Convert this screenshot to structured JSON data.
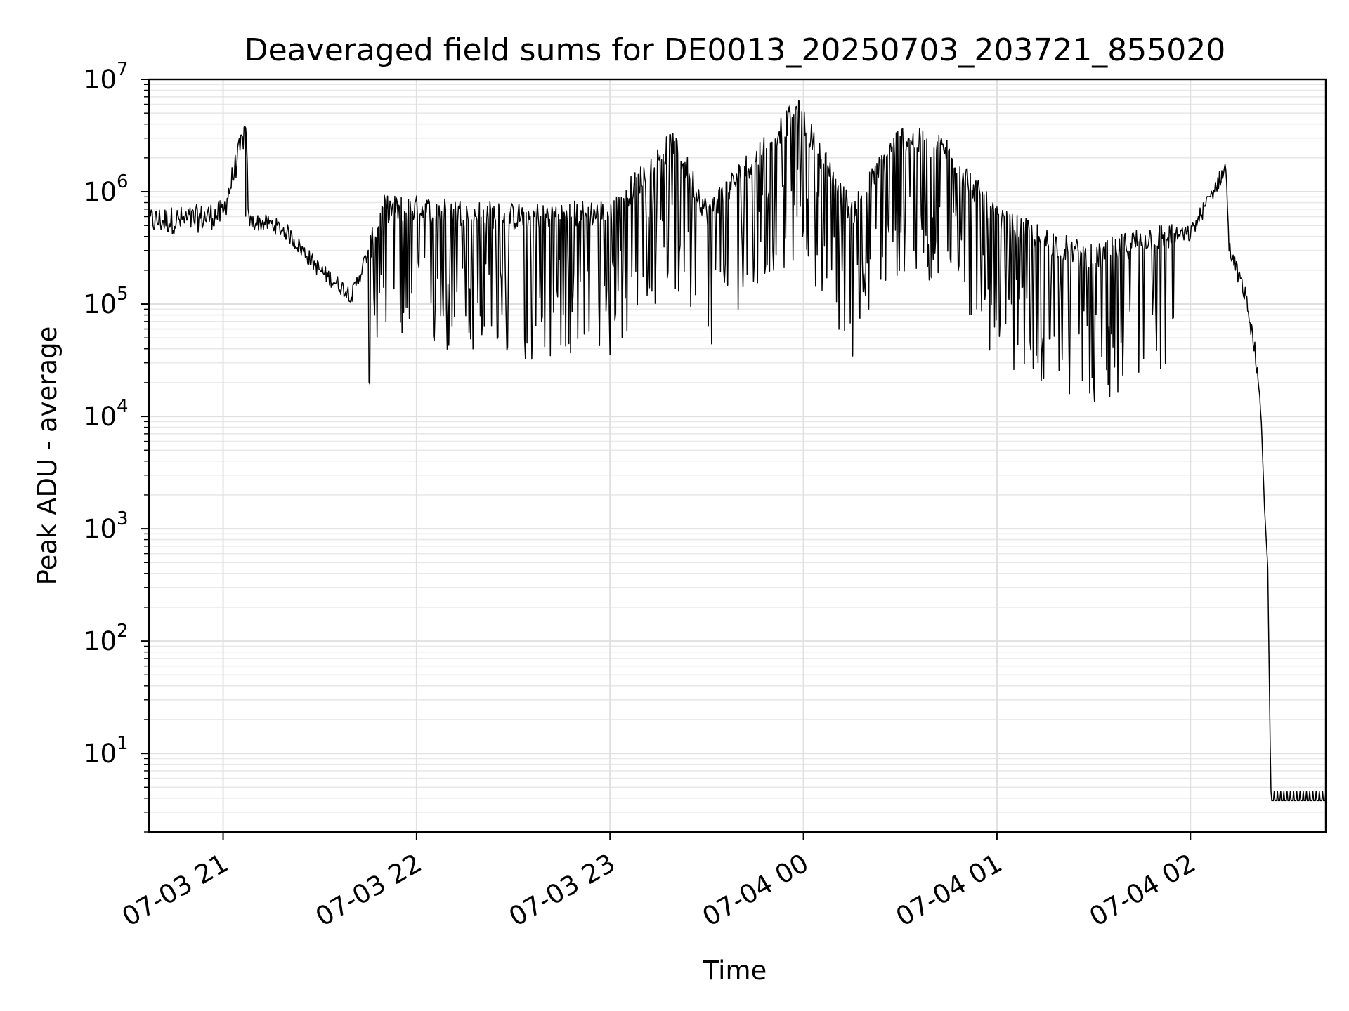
{
  "chart_data": {
    "type": "line",
    "title": "Deaveraged field sums for DE0013_20250703_203721_855020",
    "xlabel": "Time",
    "ylabel": "Peak ADU - average",
    "yscale": "log",
    "ylim": [
      2,
      10000000
    ],
    "xlim": [
      "07-03 20:37",
      "07-04 02:42"
    ],
    "grid": true,
    "line_color": "#000000",
    "x_tick_labels": [
      "07-03 21",
      "07-03 22",
      "07-03 23",
      "07-04 00",
      "07-04 01",
      "07-04 02"
    ],
    "y_tick_labels": [
      {
        "base": "10",
        "exp": "1"
      },
      {
        "base": "10",
        "exp": "2"
      },
      {
        "base": "10",
        "exp": "3"
      },
      {
        "base": "10",
        "exp": "4"
      },
      {
        "base": "10",
        "exp": "5"
      },
      {
        "base": "10",
        "exp": "6"
      },
      {
        "base": "10",
        "exp": "7"
      }
    ],
    "series": [
      {
        "points": [
          {
            "x": "07-03 20:37",
            "y": 550000
          },
          {
            "x": "07-03 20:50",
            "y": 560000
          },
          {
            "x": "07-03 21:00",
            "y": 640000
          },
          {
            "x": "07-03 21:07",
            "y": 3700000
          },
          {
            "x": "07-03 21:08",
            "y": 540000
          },
          {
            "x": "07-03 21:15",
            "y": 520000
          },
          {
            "x": "07-03 21:20",
            "y": 430000
          },
          {
            "x": "07-03 21:30",
            "y": 200000
          },
          {
            "x": "07-03 21:40",
            "y": 120000
          },
          {
            "x": "07-03 21:50",
            "y": 700000
          },
          {
            "x": "07-03 22:00",
            "y": 700000
          },
          {
            "x": "07-03 22:30",
            "y": 600000
          },
          {
            "x": "07-03 23:00",
            "y": 650000
          },
          {
            "x": "07-03 23:20",
            "y": 2800000
          },
          {
            "x": "07-03 23:30",
            "y": 650000
          },
          {
            "x": "07-03 23:58",
            "y": 5300000
          },
          {
            "x": "07-04 00:15",
            "y": 650000
          },
          {
            "x": "07-04 00:30",
            "y": 3100000
          },
          {
            "x": "07-04 00:45",
            "y": 2300000
          },
          {
            "x": "07-04 01:00",
            "y": 550000
          },
          {
            "x": "07-04 01:30",
            "y": 250000
          },
          {
            "x": "07-04 01:45",
            "y": 380000
          },
          {
            "x": "07-04 02:00",
            "y": 420000
          },
          {
            "x": "07-04 02:11",
            "y": 1650000
          },
          {
            "x": "07-04 02:12",
            "y": 320000
          },
          {
            "x": "07-04 02:17",
            "y": 120000
          },
          {
            "x": "07-04 02:20",
            "y": 40000
          },
          {
            "x": "07-04 02:22",
            "y": 9000
          },
          {
            "x": "07-04 02:23",
            "y": 1500
          },
          {
            "x": "07-04 02:24",
            "y": 450
          },
          {
            "x": "07-04 02:25",
            "y": 3.8
          },
          {
            "x": "07-04 02:42",
            "y": 3.8
          }
        ]
      }
    ]
  }
}
